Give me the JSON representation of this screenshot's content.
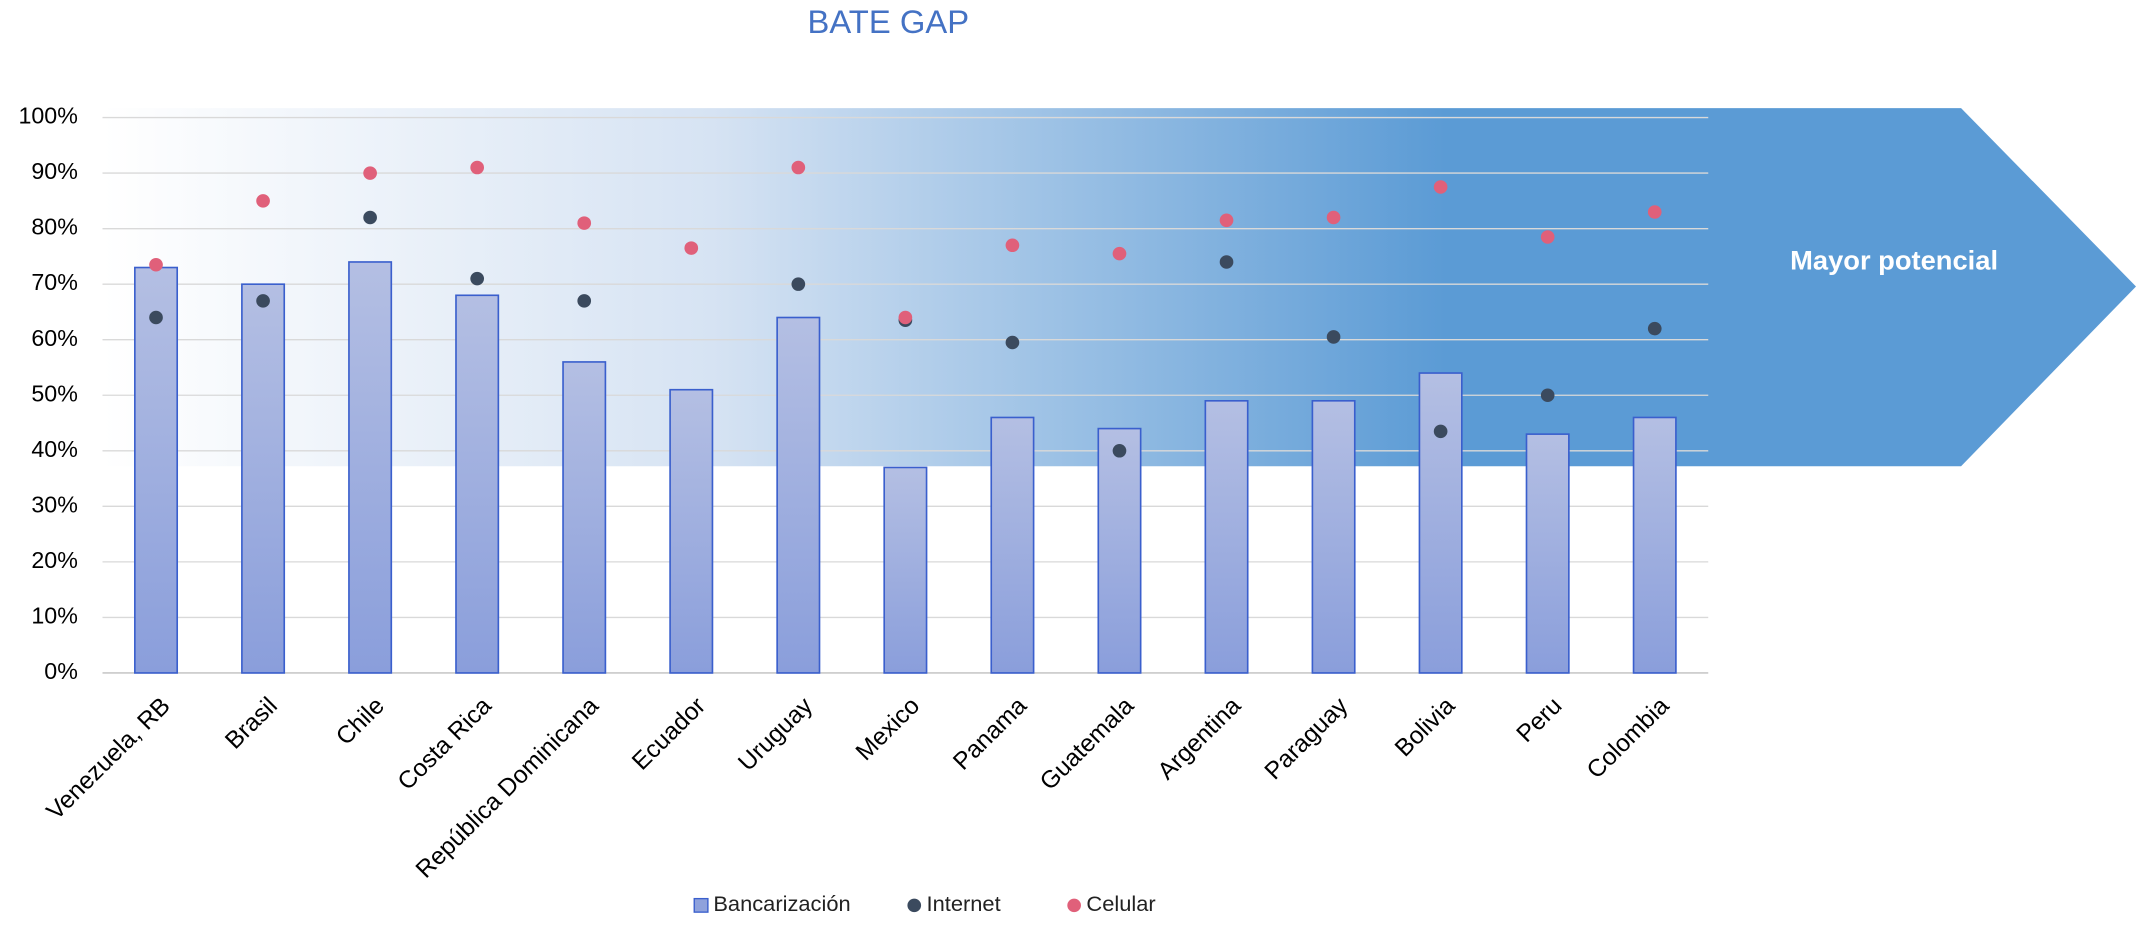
{
  "chart_data": {
    "type": "bar",
    "title": "BATE  GAP",
    "annotation": "Mayor potencial",
    "categories": [
      "Venezuela, RB",
      "Brasil",
      "Chile",
      "Costa Rica",
      "República Dominicana",
      "Ecuador",
      "Uruguay",
      "Mexico",
      "Panama",
      "Guatemala",
      "Argentina",
      "Paraguay",
      "Bolivia",
      "Peru",
      "Colombia"
    ],
    "series": [
      {
        "name": "Bancarización",
        "type": "bar",
        "color": "#8fa2dc",
        "values": [
          73,
          70,
          74,
          68,
          56,
          51,
          64,
          37,
          46,
          44,
          49,
          49,
          54,
          43,
          46
        ]
      },
      {
        "name": "Internet",
        "type": "scatter",
        "color": "#3b4a5e",
        "values": [
          64,
          67,
          82,
          71,
          67,
          null,
          70,
          63.5,
          59.5,
          40,
          74,
          60.5,
          43.5,
          50,
          62
        ]
      },
      {
        "name": "Celular",
        "type": "scatter",
        "color": "#e0607a",
        "values": [
          73.5,
          85,
          90,
          91,
          81,
          76.5,
          91,
          64,
          77,
          75.5,
          81.5,
          82,
          87.5,
          78.5,
          83
        ]
      }
    ],
    "ylim": [
      0,
      100
    ],
    "yticks": [
      {
        "value": 0,
        "label": "0%"
      },
      {
        "value": 10,
        "label": "10%"
      },
      {
        "value": 20,
        "label": "20%"
      },
      {
        "value": 30,
        "label": "30%"
      },
      {
        "value": 40,
        "label": "40%"
      },
      {
        "value": 50,
        "label": "50%"
      },
      {
        "value": 60,
        "label": "60%"
      },
      {
        "value": 70,
        "label": "70%"
      },
      {
        "value": 80,
        "label": "80%"
      },
      {
        "value": 90,
        "label": "90%"
      },
      {
        "value": 100,
        "label": "100%"
      }
    ],
    "grid": true,
    "legend": "bottom"
  }
}
